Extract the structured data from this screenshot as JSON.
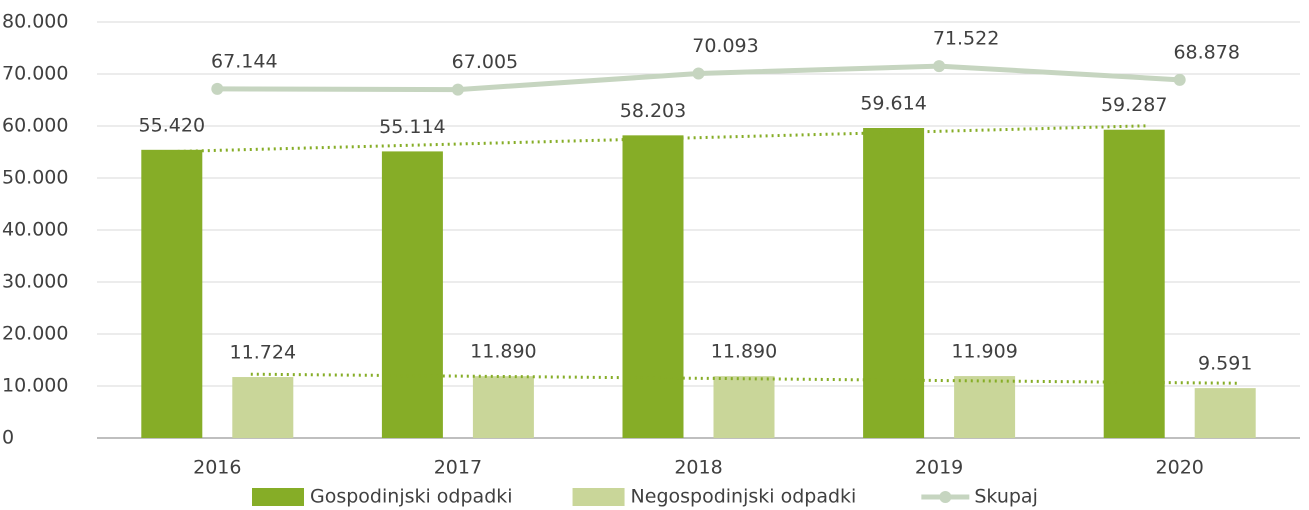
{
  "chart_data": {
    "type": "bar",
    "categories": [
      "2016",
      "2017",
      "2018",
      "2019",
      "2020"
    ],
    "series": [
      {
        "name": "Gospodinjski odpadki",
        "type": "bar",
        "color": "#86ad27",
        "trendline": true,
        "values": [
          55420,
          55114,
          58203,
          59614,
          59287
        ],
        "value_labels": [
          "55.420",
          "55.114",
          "58.203",
          "59.614",
          "59.287"
        ]
      },
      {
        "name": "Negospodinjski odpadki",
        "type": "bar",
        "color": "#c9d699",
        "trendline": true,
        "values": [
          11724,
          11890,
          11890,
          11909,
          9591
        ],
        "value_labels": [
          "11.724",
          "11.890",
          "11.890",
          "11.909",
          "9.591"
        ]
      },
      {
        "name": "Skupaj",
        "type": "line",
        "color": "#c6d5c0",
        "trendline": false,
        "values": [
          67144,
          67005,
          70093,
          71522,
          68878
        ],
        "value_labels": [
          "67.144",
          "67.005",
          "70.093",
          "71.522",
          "68.878"
        ]
      }
    ],
    "ylim": [
      0,
      80000
    ],
    "yticks": [
      0,
      {
        "value": 10000,
        "label": "10.000"
      },
      {
        "value": 20000,
        "label": "20.000"
      },
      {
        "value": 30000,
        "label": "30.000"
      },
      {
        "value": 40000,
        "label": "40.000"
      },
      {
        "value": 50000,
        "label": "50.000"
      },
      {
        "value": 60000,
        "label": "60.000"
      },
      {
        "value": 70000,
        "label": "70.000"
      },
      {
        "value": 80000,
        "label": "80.000"
      }
    ],
    "grid": true,
    "legend": "bottom"
  }
}
